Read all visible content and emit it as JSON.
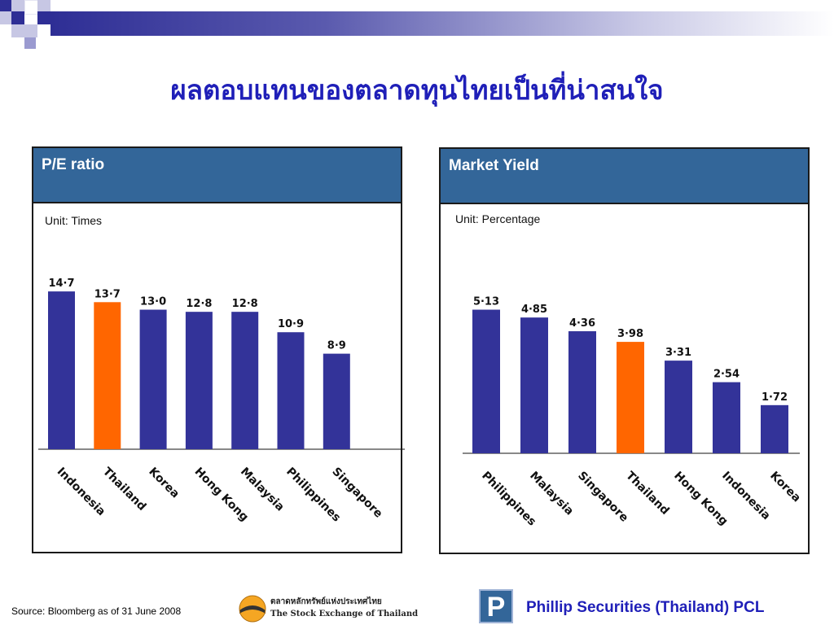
{
  "slide": {
    "title": "ผลตอบแทนของตลาดทุนไทยเป็นที่น่าสนใจ",
    "source": "Source: Bloomberg as of 31 June  2008",
    "exchange_logo_th": "ตลาดหลักทรัพย์แห่งประเทศไทย",
    "exchange_logo_en": "The Stock Exchange of Thailand",
    "company": "Phillip Securities (Thailand) PCL",
    "company_logo_letter": "P",
    "colors": {
      "bar": "#333399",
      "highlight": "#ff6600",
      "header": "#336699",
      "title": "#1f1fb8"
    }
  },
  "chart_data": [
    {
      "type": "bar",
      "title": "P/E ratio",
      "unit_label": "Unit: Times",
      "categories": [
        "Indonesia",
        "Thailand",
        "Korea",
        "Hong Kong",
        "Malaysia",
        "Philippines",
        "Singapore"
      ],
      "values": [
        14.7,
        13.7,
        13.0,
        12.8,
        12.8,
        10.9,
        8.9
      ],
      "value_labels": [
        "14·7",
        "13·7",
        "13·0",
        "12·8",
        "12·8",
        "10·9",
        "8·9"
      ],
      "highlight": "Thailand",
      "ylim": [
        0,
        15
      ],
      "grid": false,
      "legend": "none"
    },
    {
      "type": "bar",
      "title": "Market Yield",
      "unit_label": "Unit: Percentage",
      "categories": [
        "Philippines",
        "Malaysia",
        "Singapore",
        "Thailand",
        "Hong Kong",
        "Indonesia",
        "Korea"
      ],
      "values": [
        5.13,
        4.85,
        4.36,
        3.98,
        3.31,
        2.54,
        1.72
      ],
      "value_labels": [
        "5·13",
        "4·85",
        "4·36",
        "3·98",
        "3·31",
        "2·54",
        "1·72"
      ],
      "highlight": "Thailand",
      "ylim": [
        0,
        5.3
      ],
      "grid": false,
      "legend": "none"
    }
  ]
}
